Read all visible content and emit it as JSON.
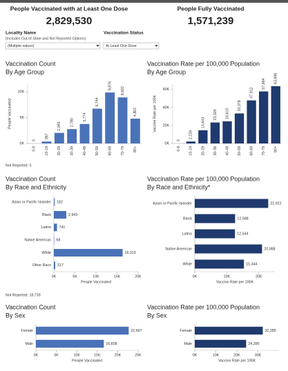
{
  "header": {
    "kpis": [
      {
        "label": "People Vaccinated with at Least One Dose",
        "value": "2,829,530"
      },
      {
        "label": "People Fully Vaccinated",
        "value": "1,571,239"
      }
    ],
    "filters": [
      {
        "label": "Locality Name",
        "sublabel": "(Includes Out-of-State and Not Reported Options)",
        "value": "(Multiple values)"
      },
      {
        "label": "Vaccination Status",
        "value": "At Least One Dose"
      }
    ]
  },
  "notes": [
    "Not Reported: 0",
    "Not Reported: 18,739"
  ],
  "chart_data": [
    {
      "type": "bar",
      "title": "Vaccination Count",
      "subtitle": "By Age Group",
      "ylabel": "People Vaccinated",
      "categories": [
        "0-9",
        "10-19",
        "20-29",
        "30-39",
        "40-49",
        "50-59",
        "60-69",
        "70-79",
        "80+"
      ],
      "values": [
        0,
        367,
        2045,
        2780,
        3774,
        6744,
        9876,
        8922,
        4801
      ],
      "value_labels": [
        "0",
        "367",
        "2,045",
        "2,780",
        "3,774",
        "6,744",
        "9,876",
        "8,922",
        "4,801"
      ],
      "color": "#4a72b8",
      "ylim": [
        0,
        11500
      ],
      "yticks": [
        {
          "value": 0,
          "label": "0K"
        },
        {
          "value": 5000,
          "label": "5K"
        },
        {
          "value": 10000,
          "label": "10K"
        }
      ]
    },
    {
      "type": "bar",
      "title": "Vaccination Rate per 100,000 Population",
      "subtitle": "By Age Group",
      "ylabel": "Vaccine Rate per 100K",
      "categories": [
        "0-9",
        "10-19",
        "20-29",
        "30-39",
        "40-49",
        "50-59",
        "60-69",
        "70-79",
        "80+"
      ],
      "values": [
        0,
        2159,
        14643,
        23320,
        24610,
        33378,
        47912,
        57864,
        63696
      ],
      "value_labels": [
        "0",
        "2,159",
        "14,643",
        "23,320",
        "24,610",
        "33,378",
        "47,912",
        "57,864",
        "63,696"
      ],
      "color": "#1f3a6e",
      "ylim": [
        0,
        66000
      ],
      "yticks": [
        {
          "value": 0,
          "label": "0K"
        },
        {
          "value": 20000,
          "label": "20K"
        },
        {
          "value": 40000,
          "label": "40K"
        },
        {
          "value": 60000,
          "label": "60K"
        }
      ]
    },
    {
      "type": "barh",
      "title": "Vaccination Count",
      "subtitle": "By Race and Ethnicity",
      "xlabel": "People Vaccinated",
      "categories": [
        "Asian or Pacific Islander",
        "Black",
        "Latino",
        "Native American",
        "White",
        "Other Race"
      ],
      "values": [
        182,
        2943,
        741,
        68,
        16319,
        317
      ],
      "value_labels": [
        "182",
        "2,943",
        "741",
        "68",
        "16,319",
        "317"
      ],
      "color": "#4a72b8",
      "xlim": [
        0,
        20000
      ],
      "xticks": [
        {
          "value": 0,
          "label": "0K"
        },
        {
          "value": 5000,
          "label": "5K"
        },
        {
          "value": 10000,
          "label": "10K"
        },
        {
          "value": 15000,
          "label": "15K"
        },
        {
          "value": 20000,
          "label": "20K"
        }
      ]
    },
    {
      "type": "barh",
      "title": "Vaccination Rate per 100,000 Population",
      "subtitle": "By Race and Ethnicity*",
      "xlabel": "Vaccine Rate per 100K",
      "categories": [
        "Asian or Pacific Islander",
        "Black",
        "Latino",
        "Native American",
        "White"
      ],
      "values": [
        22922,
        12588,
        12544,
        20988,
        15344
      ],
      "value_labels": [
        "22,922",
        "12,588",
        "12,544",
        "20,988",
        "15,344"
      ],
      "color": "#1f3a6e",
      "xlim": [
        0,
        25000
      ],
      "xticks": [
        {
          "value": 0,
          "label": "0K"
        },
        {
          "value": 10000,
          "label": "10K"
        },
        {
          "value": 20000,
          "label": "20K"
        }
      ]
    },
    {
      "type": "barh",
      "title": "Vaccination Count",
      "subtitle": "By Sex",
      "xlabel": "People Vaccinated",
      "categories": [
        "Female",
        "Male"
      ],
      "values": [
        22697,
        16608
      ],
      "value_labels": [
        "22,697",
        "16,608"
      ],
      "color": "#4a72b8",
      "xlim": [
        0,
        25000
      ],
      "xticks": [
        {
          "value": 0,
          "label": "0K"
        },
        {
          "value": 5000,
          "label": "5K"
        },
        {
          "value": 10000,
          "label": "10K"
        },
        {
          "value": 15000,
          "label": "15K"
        },
        {
          "value": 20000,
          "label": "20K"
        },
        {
          "value": 25000,
          "label": "25K"
        }
      ]
    },
    {
      "type": "barh",
      "title": "Vaccination Rate per 100,000 Population",
      "subtitle": "By Sex",
      "xlabel": "Vaccine Rate per 100K",
      "categories": [
        "Female",
        "Male"
      ],
      "values": [
        32285,
        24390
      ],
      "value_labels": [
        "32,285",
        "24,390"
      ],
      "color": "#1f3a6e",
      "xlim": [
        0,
        40000
      ],
      "xticks": [
        {
          "value": 0,
          "label": "0K"
        },
        {
          "value": 10000,
          "label": "10K"
        },
        {
          "value": 20000,
          "label": "20K"
        },
        {
          "value": 30000,
          "label": "30K"
        }
      ]
    }
  ]
}
